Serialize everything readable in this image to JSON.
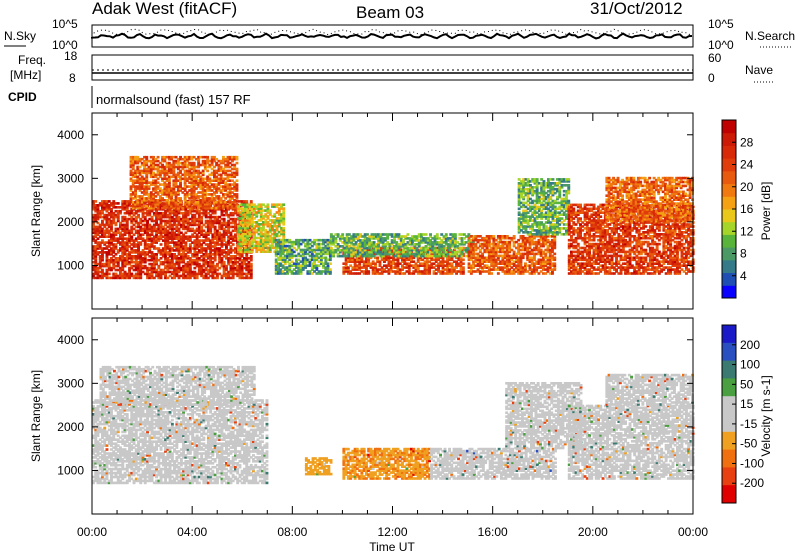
{
  "header": {
    "station": "Adak West (fitACF)",
    "beam": "Beam 03",
    "date": "31/Oct/2012"
  },
  "panel_noise": {
    "left_label": "N.Sky",
    "left_ticks": [
      "10^5",
      "10^0"
    ],
    "right_label": "N.Search",
    "right_ticks": [
      "10^5",
      "10^0"
    ]
  },
  "panel_freq": {
    "left_label_1": "Freq.",
    "left_label_2": "[MHz]",
    "left_ticks": [
      "18",
      "8"
    ],
    "right_label": "Nave",
    "right_ticks": [
      "60",
      "0"
    ]
  },
  "panel_cpid": {
    "label": "CPID",
    "text": "normalsound (fast) 157 RF"
  },
  "time_axis": {
    "label": "Time UT",
    "ticks": [
      "00:00",
      "04:00",
      "08:00",
      "12:00",
      "16:00",
      "20:00",
      "00:00"
    ]
  },
  "chart_data": [
    {
      "type": "heatmap",
      "title": "Power",
      "ylabel": "Slant Range [km]",
      "xlabel": "Time UT",
      "xlim": [
        0,
        24
      ],
      "ylim": [
        0,
        4500
      ],
      "yticks": [
        1000,
        2000,
        3000,
        4000
      ],
      "colorbar": {
        "label": "Power [dB]",
        "ticks": [
          4,
          8,
          12,
          16,
          20,
          24,
          28
        ],
        "colors": [
          "#0a00ff",
          "#1f4fb4",
          "#347a88",
          "#4b9a66",
          "#58b43a",
          "#a6d52a",
          "#e9c81a",
          "#f5a114",
          "#f07a10",
          "#e85a0e",
          "#e03d0a",
          "#d82a08",
          "#cc1a06",
          "#c00000"
        ]
      },
      "regions": [
        {
          "t0": 0.0,
          "t1": 6.3,
          "r0": 700,
          "r1": 2500,
          "level": 26
        },
        {
          "t0": 1.5,
          "t1": 5.8,
          "r0": 2300,
          "r1": 3500,
          "level": 22
        },
        {
          "t0": 5.8,
          "t1": 7.6,
          "r0": 1300,
          "r1": 2400,
          "level": 14
        },
        {
          "t0": 7.3,
          "t1": 9.5,
          "r0": 800,
          "r1": 1600,
          "level": 9
        },
        {
          "t0": 10.0,
          "t1": 14.8,
          "r0": 800,
          "r1": 1400,
          "level": 24
        },
        {
          "t0": 9.5,
          "t1": 15.2,
          "r0": 1200,
          "r1": 1700,
          "level": 10
        },
        {
          "t0": 15.0,
          "t1": 18.5,
          "r0": 800,
          "r1": 1700,
          "level": 22
        },
        {
          "t0": 17.0,
          "t1": 19.0,
          "r0": 1700,
          "r1": 3000,
          "level": 10
        },
        {
          "t0": 19.0,
          "t1": 24.0,
          "r0": 800,
          "r1": 2400,
          "level": 25
        },
        {
          "t0": 20.5,
          "t1": 24.0,
          "r0": 2000,
          "r1": 3000,
          "level": 21
        }
      ]
    },
    {
      "type": "heatmap",
      "title": "Velocity",
      "ylabel": "Slant Range [km]",
      "xlabel": "Time UT",
      "xlim": [
        0,
        24
      ],
      "ylim": [
        0,
        4500
      ],
      "yticks": [
        1000,
        2000,
        3000,
        4000
      ],
      "colorbar": {
        "label": "Velocity [m s-1]",
        "ticks": [
          200,
          100,
          50,
          15,
          -15,
          -50,
          -100,
          -200
        ],
        "colors": [
          "#1a1ac8",
          "#2a4fc0",
          "#3a7a70",
          "#4aa040",
          "#c8c8c8",
          "#c8c8c8",
          "#f0a020",
          "#f07010",
          "#e84010",
          "#e00000"
        ]
      },
      "regions": [
        {
          "t0": 0.0,
          "t1": 7.0,
          "r0": 700,
          "r1": 2600,
          "velocity": 0
        },
        {
          "t0": 0.3,
          "t1": 6.5,
          "r0": 2500,
          "r1": 3400,
          "velocity": 0
        },
        {
          "t0": 8.5,
          "t1": 9.5,
          "r0": 900,
          "r1": 1300,
          "velocity": -40
        },
        {
          "t0": 10.0,
          "t1": 13.5,
          "r0": 800,
          "r1": 1500,
          "velocity": -45
        },
        {
          "t0": 13.5,
          "t1": 18.5,
          "r0": 800,
          "r1": 1500,
          "velocity": 5
        },
        {
          "t0": 16.5,
          "t1": 19.5,
          "r0": 1500,
          "r1": 3000,
          "velocity": 0
        },
        {
          "t0": 19.0,
          "t1": 24.0,
          "r0": 800,
          "r1": 2500,
          "velocity": 0
        },
        {
          "t0": 20.5,
          "t1": 24.0,
          "r0": 2500,
          "r1": 3200,
          "velocity": 0
        }
      ]
    }
  ]
}
